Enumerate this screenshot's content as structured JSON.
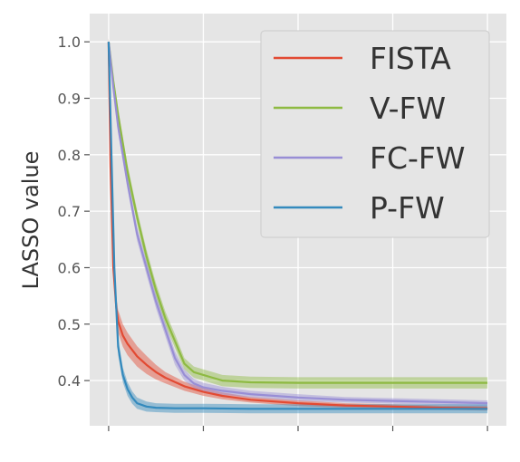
{
  "chart_data": {
    "type": "line",
    "title": "",
    "xlabel": "",
    "ylabel": "LASSO value",
    "xlim": [
      -2,
      42
    ],
    "ylim": [
      0.32,
      1.05
    ],
    "y_ticks": [
      1.0,
      0.9,
      0.8,
      0.7,
      0.6,
      0.5,
      0.4
    ],
    "y_tick_labels": [
      "1.0",
      "0.9",
      "0.8",
      "0.7",
      "0.6",
      "0.5",
      "0.4"
    ],
    "x_ticks": [
      0,
      10,
      20,
      30,
      40
    ],
    "x_tick_labels": [
      "",
      "",
      "",
      "",
      ""
    ],
    "grid": true,
    "legend_position": "top-right",
    "series": [
      {
        "name": "FISTA",
        "color": "#E24A33",
        "x": [
          0,
          0.2,
          0.5,
          0.8,
          1,
          1.5,
          2,
          3,
          4,
          5,
          6,
          8,
          10,
          12,
          15,
          20,
          25,
          30,
          35,
          40
        ],
        "values": [
          1.0,
          0.78,
          0.6,
          0.53,
          0.505,
          0.48,
          0.465,
          0.443,
          0.428,
          0.415,
          0.405,
          0.39,
          0.38,
          0.373,
          0.366,
          0.36,
          0.356,
          0.354,
          0.352,
          0.351
        ],
        "band": [
          0.012,
          0.012,
          0.015,
          0.018,
          0.02,
          0.02,
          0.02,
          0.018,
          0.016,
          0.013,
          0.01,
          0.008,
          0.007,
          0.006,
          0.005,
          0.005,
          0.004,
          0.004,
          0.004,
          0.004
        ]
      },
      {
        "name": "V-FW",
        "color": "#8EBA42",
        "x": [
          0,
          0.5,
          1,
          2,
          3,
          4,
          5,
          6,
          7,
          8,
          9,
          10,
          11,
          12,
          15,
          20,
          25,
          30,
          35,
          40
        ],
        "values": [
          1.0,
          0.93,
          0.87,
          0.77,
          0.69,
          0.62,
          0.56,
          0.51,
          0.47,
          0.43,
          0.415,
          0.41,
          0.405,
          0.4,
          0.397,
          0.396,
          0.396,
          0.396,
          0.396,
          0.396
        ],
        "band": [
          0.005,
          0.01,
          0.012,
          0.012,
          0.012,
          0.012,
          0.012,
          0.012,
          0.012,
          0.01,
          0.01,
          0.01,
          0.01,
          0.01,
          0.01,
          0.01,
          0.01,
          0.01,
          0.01,
          0.01
        ]
      },
      {
        "name": "FC-FW",
        "color": "#988ED5",
        "x": [
          0,
          0.5,
          1,
          2,
          3,
          4,
          5,
          6,
          7,
          8,
          9,
          10,
          12,
          15,
          20,
          25,
          30,
          35,
          40
        ],
        "values": [
          1.0,
          0.92,
          0.85,
          0.75,
          0.66,
          0.6,
          0.54,
          0.49,
          0.44,
          0.41,
          0.395,
          0.388,
          0.382,
          0.376,
          0.37,
          0.366,
          0.364,
          0.362,
          0.36
        ],
        "band": [
          0.005,
          0.01,
          0.012,
          0.012,
          0.012,
          0.012,
          0.012,
          0.012,
          0.012,
          0.01,
          0.008,
          0.008,
          0.007,
          0.006,
          0.006,
          0.005,
          0.005,
          0.005,
          0.005
        ]
      },
      {
        "name": "P-FW",
        "color": "#348ABD",
        "x": [
          0,
          0.3,
          0.6,
          1,
          1.5,
          2,
          2.5,
          3,
          4,
          5,
          7,
          10,
          15,
          20,
          25,
          30,
          35,
          40
        ],
        "values": [
          1.0,
          0.8,
          0.6,
          0.46,
          0.41,
          0.385,
          0.37,
          0.36,
          0.354,
          0.352,
          0.351,
          0.351,
          0.35,
          0.35,
          0.35,
          0.35,
          0.35,
          0.35
        ],
        "band": [
          0.005,
          0.01,
          0.015,
          0.015,
          0.013,
          0.012,
          0.011,
          0.01,
          0.009,
          0.008,
          0.008,
          0.008,
          0.008,
          0.008,
          0.008,
          0.008,
          0.008,
          0.008
        ]
      }
    ]
  }
}
